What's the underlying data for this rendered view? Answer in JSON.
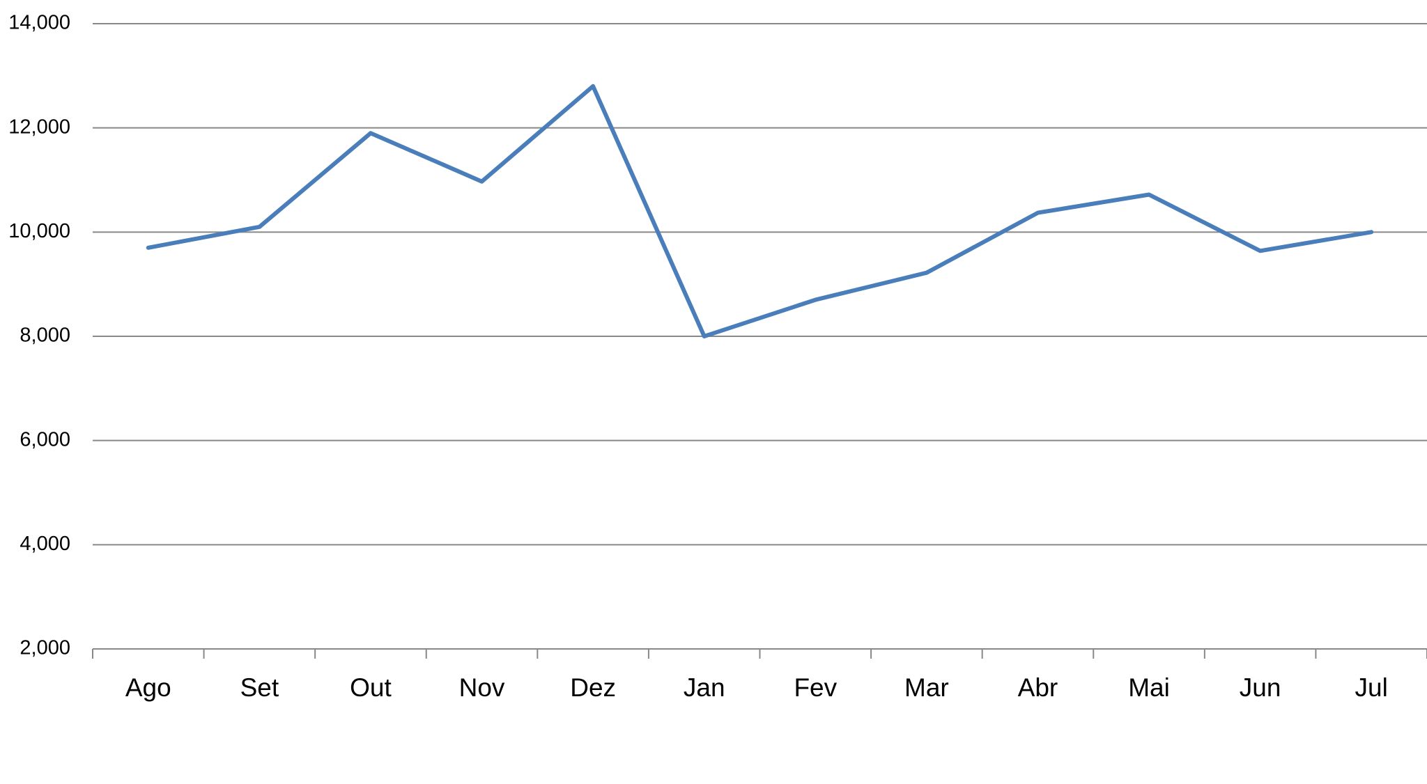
{
  "chart_data": {
    "type": "line",
    "categories": [
      "Ago",
      "Set",
      "Out",
      "Nov",
      "Dez",
      "Jan",
      "Fev",
      "Mar",
      "Abr",
      "Mai",
      "Jun",
      "Jul"
    ],
    "values": [
      9700,
      10100,
      11900,
      10970,
      12800,
      8000,
      8700,
      9220,
      10370,
      10720,
      9640,
      10000
    ],
    "color": "#4a7ebb",
    "ylim": [
      2000,
      14000
    ],
    "yticks": [
      {
        "value": 2000,
        "label": "2,000"
      },
      {
        "value": 4000,
        "label": "4,000"
      },
      {
        "value": 6000,
        "label": "6,000"
      },
      {
        "value": 8000,
        "label": "8,000"
      },
      {
        "value": 10000,
        "label": "10,000"
      },
      {
        "value": 12000,
        "label": "12,000"
      },
      {
        "value": 14000,
        "label": "14,000"
      }
    ],
    "grid": true
  }
}
